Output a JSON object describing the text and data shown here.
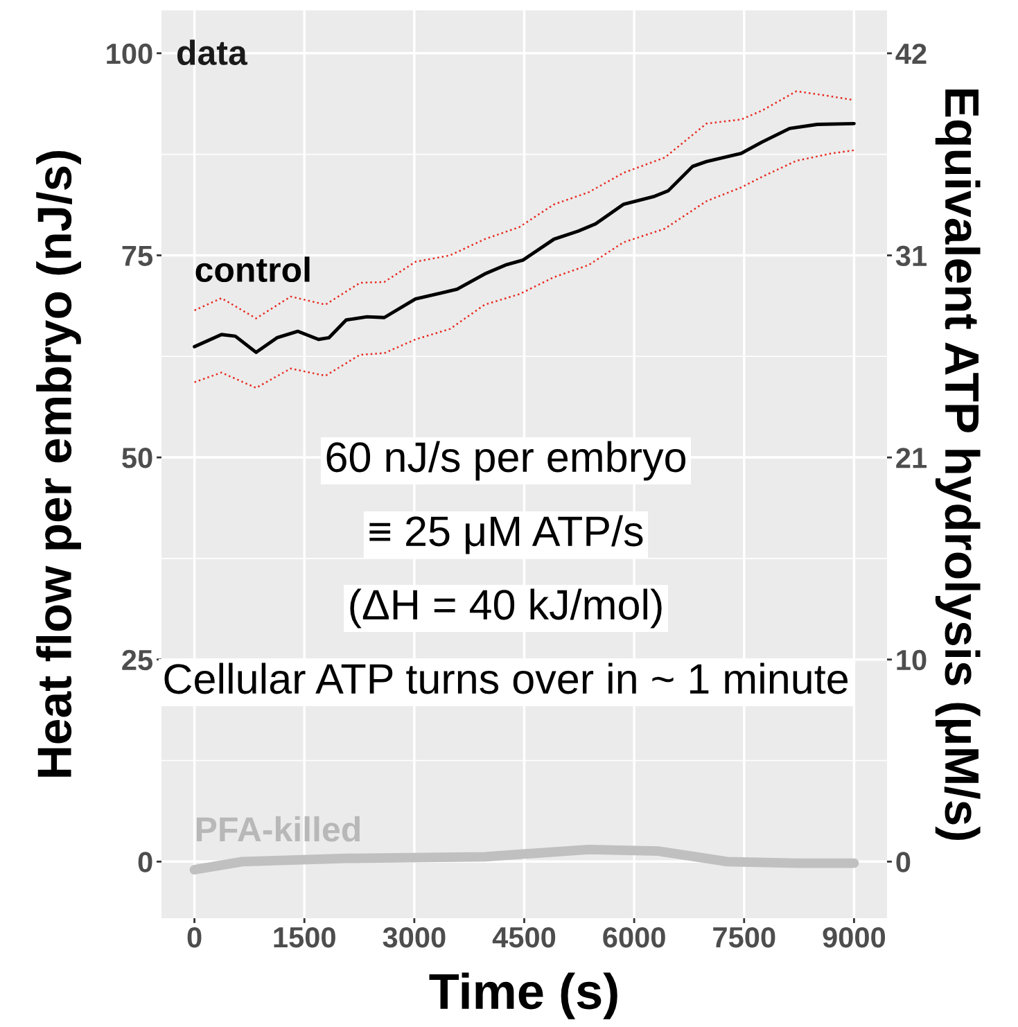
{
  "chart_data": {
    "type": "line",
    "xlabel": "Time (s)",
    "ylabel": "Heat flow per embryo (nJ/s)",
    "y2label": "Equivalent ATP hydrolysis (μM/s)",
    "series": [
      {
        "name": "control",
        "color": "#000000",
        "x": [
          0,
          369,
          558,
          841,
          1125,
          1409,
          1692,
          1834,
          2070,
          2354,
          2590,
          3016,
          3394,
          3583,
          3961,
          4245,
          4481,
          4906,
          5237,
          5474,
          5852,
          6277,
          6466,
          6797,
          6986,
          7459,
          7742,
          8121,
          8499,
          9000
        ],
        "values": [
          63.7,
          65.2,
          65.0,
          63.0,
          64.8,
          65.6,
          64.6,
          64.8,
          67.0,
          67.4,
          67.3,
          69.6,
          70.4,
          70.8,
          72.7,
          73.8,
          74.4,
          77.0,
          78.0,
          78.9,
          81.3,
          82.3,
          83.0,
          86.0,
          86.6,
          87.6,
          89.0,
          90.7,
          91.2,
          91.3
        ]
      },
      {
        "color": "#e8281e",
        "line_style": "dotted",
        "x": [
          0,
          369,
          841,
          1314,
          1787,
          2259,
          2590,
          3016,
          3488,
          3961,
          4434,
          4906,
          5379,
          5852,
          6419,
          6986,
          7459,
          7742,
          8215,
          8593,
          9000
        ],
        "values": [
          68.2,
          69.7,
          67.2,
          69.9,
          68.9,
          71.6,
          71.7,
          74.2,
          75.0,
          77.0,
          78.5,
          81.3,
          82.8,
          85.2,
          87.1,
          91.3,
          91.8,
          92.9,
          95.3,
          94.8,
          94.2
        ]
      },
      {
        "color": "#e8281e",
        "line_style": "dotted",
        "x": [
          0,
          369,
          841,
          1314,
          1787,
          2259,
          2590,
          3016,
          3488,
          3961,
          4434,
          4906,
          5379,
          5852,
          6419,
          6986,
          7459,
          7742,
          8215,
          8688,
          9000
        ],
        "values": [
          59.3,
          60.5,
          58.6,
          61.0,
          60.1,
          62.7,
          62.9,
          64.6,
          65.9,
          68.9,
          70.2,
          72.3,
          73.8,
          76.6,
          78.3,
          81.7,
          83.4,
          84.7,
          86.7,
          87.6,
          88.0
        ]
      },
      {
        "name": "PFA-killed",
        "color": "#c0c0c0",
        "x": [
          0,
          652,
          2070,
          3961,
          5379,
          6324,
          7270,
          8215,
          9000
        ],
        "values": [
          -1.0,
          0.0,
          0.4,
          0.6,
          1.5,
          1.3,
          0.0,
          -0.2,
          -0.2
        ]
      }
    ],
    "annotations": [
      "data",
      "60 nJ/s per embryo",
      "≡ 25 μM ATP/s",
      "(ΔH = 40 kJ/mol)",
      "Cellular ATP turns over in ~ 1 minute"
    ],
    "xlim": [
      -450,
      9450
    ],
    "xticks": [
      0,
      1500,
      3000,
      4500,
      6000,
      7500,
      9000
    ],
    "ylim": [
      -7,
      105.3
    ],
    "yticks": [
      0,
      25,
      50,
      75,
      100
    ],
    "y2lim": [
      -2.94,
      44.23
    ],
    "y2ticks": [
      0,
      {
        "value": 10.5,
        "label": "10"
      },
      21,
      {
        "value": 31.5,
        "label": "31"
      },
      42
    ],
    "grid": true
  }
}
